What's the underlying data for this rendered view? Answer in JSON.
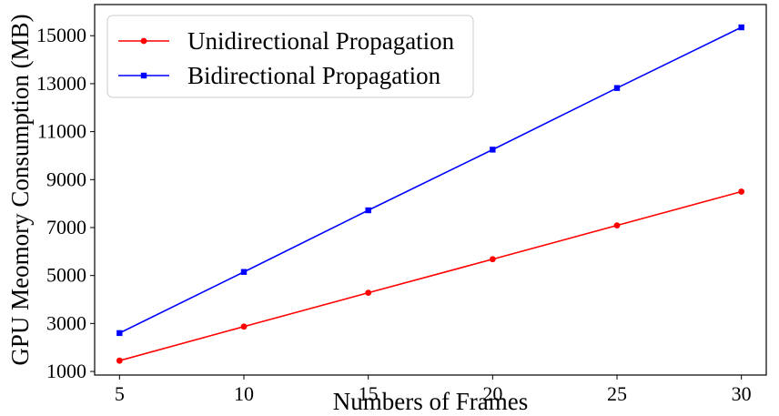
{
  "chart_data": {
    "type": "line",
    "title": "",
    "xlabel": "Numbers of Frames",
    "ylabel": "GPU Meomory Consumption (MB)",
    "x": [
      5,
      10,
      15,
      20,
      25,
      30
    ],
    "xticks": [
      5,
      10,
      15,
      20,
      25,
      30
    ],
    "yticks": [
      1000,
      3000,
      5000,
      7000,
      9000,
      11000,
      13000,
      15000
    ],
    "xlim": [
      4.0,
      31.0
    ],
    "ylim": [
      850,
      16300
    ],
    "grid": false,
    "legend_position": "top-left",
    "series": [
      {
        "name": "Unidirectional Propagation",
        "color": "#ff0000",
        "marker": "circle",
        "values": [
          1450,
          2870,
          4280,
          5680,
          7090,
          8500
        ]
      },
      {
        "name": "Bidirectional Propagation",
        "color": "#0000ff",
        "marker": "square",
        "values": [
          2600,
          5150,
          7720,
          10250,
          12820,
          15350
        ]
      }
    ]
  }
}
